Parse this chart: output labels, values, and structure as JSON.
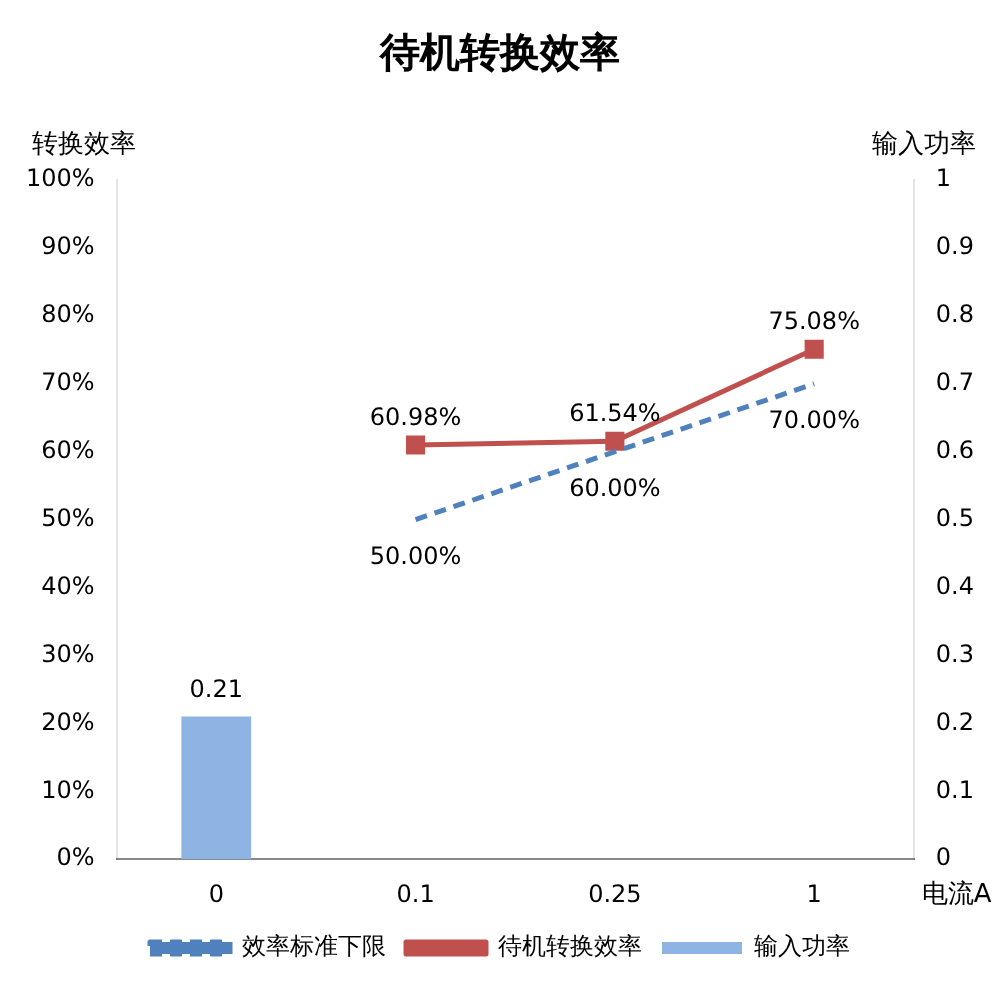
{
  "chart_data": {
    "type": "line",
    "title": "待机转换效率",
    "xlabel": "电流A",
    "ylabel": "转换效率",
    "y2label": "输入功率",
    "categories": [
      "0",
      "0.1",
      "0.25",
      "1"
    ],
    "series": [
      {
        "name": "输入功率",
        "type": "bar",
        "axis": "y2",
        "color": "#8db4e2",
        "values": [
          0.21,
          null,
          null,
          null
        ],
        "value_labels": [
          "0.21",
          null,
          null,
          null
        ]
      },
      {
        "name": "效率标准下限",
        "color": "#4f81bd",
        "line_style": "dashed",
        "marker": "none",
        "values": [
          null,
          50,
          60,
          70
        ],
        "value_labels": [
          null,
          "50.00%",
          "60.00%",
          "70.00%"
        ]
      },
      {
        "name": "待机转换效率",
        "color": "#c0504d",
        "line_style": "solid",
        "marker": "square",
        "values": [
          null,
          60.98,
          61.54,
          75.08
        ],
        "value_labels": [
          null,
          "60.98%",
          "61.54%",
          "75.08%"
        ]
      }
    ],
    "ylim": [
      0,
      100
    ],
    "yticks": [
      {
        "value": 0,
        "label": "0%"
      },
      {
        "value": 10,
        "label": "10%"
      },
      {
        "value": 20,
        "label": "20%"
      },
      {
        "value": 30,
        "label": "30%"
      },
      {
        "value": 40,
        "label": "40%"
      },
      {
        "value": 50,
        "label": "50%"
      },
      {
        "value": 60,
        "label": "60%"
      },
      {
        "value": 70,
        "label": "70%"
      },
      {
        "value": 80,
        "label": "80%"
      },
      {
        "value": 90,
        "label": "90%"
      },
      {
        "value": 100,
        "label": "100%"
      }
    ],
    "y2lim": [
      0,
      1
    ],
    "y2ticks": [
      0,
      0.1,
      0.2,
      0.3,
      0.4,
      0.5,
      0.6,
      0.7,
      0.8,
      0.9,
      1
    ],
    "grid": false,
    "legend": "bottom"
  }
}
